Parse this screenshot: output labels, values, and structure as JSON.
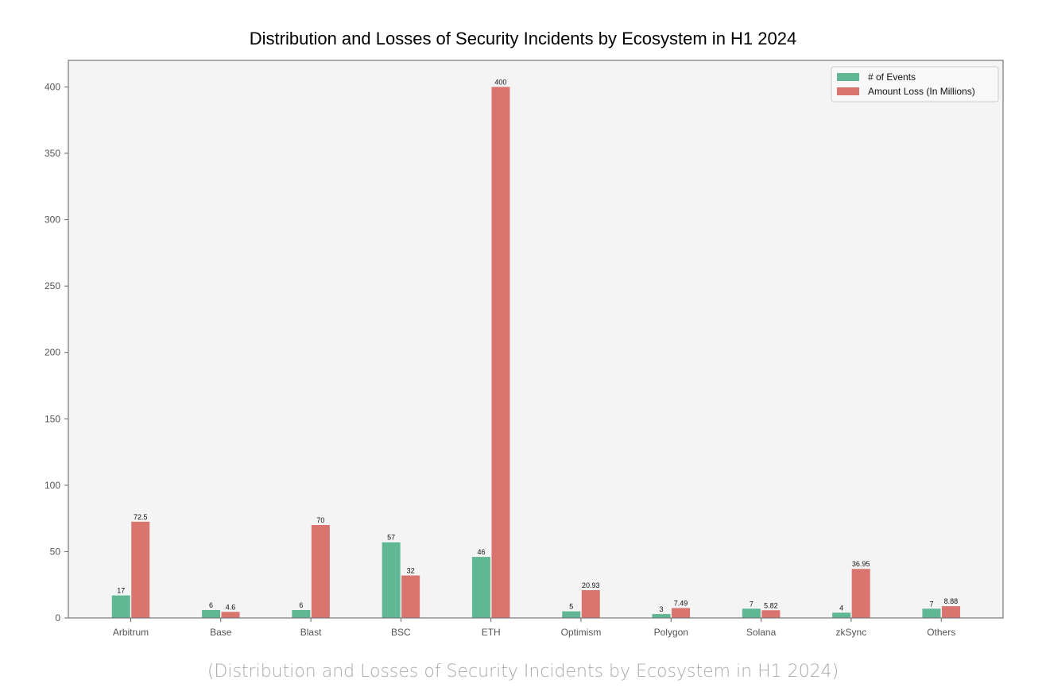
{
  "chart_data": {
    "type": "bar",
    "title": "Distribution and Losses of Security Incidents by Ecosystem in H1 2024",
    "xlabel": "",
    "ylabel": "",
    "categories": [
      "Arbitrum",
      "Base",
      "Blast",
      "BSC",
      "ETH",
      "Optimism",
      "Polygon",
      "Solana",
      "zkSync",
      "Others"
    ],
    "series": [
      {
        "name": "# of Events",
        "color": "#5fb794",
        "values": [
          17,
          6,
          6,
          57,
          46,
          5,
          3,
          7,
          4,
          7
        ],
        "labels": [
          "17",
          "6",
          "6",
          "57",
          "46",
          "5",
          "3",
          "7",
          "4",
          "7"
        ]
      },
      {
        "name": "Amount Loss (In Millions)",
        "color": "#d9746f",
        "values": [
          72.5,
          4.6,
          70,
          32,
          400,
          20.93,
          7.49,
          5.82,
          36.95,
          8.88
        ],
        "labels": [
          "72.5",
          "4.6",
          "70",
          "32",
          "400",
          "20.93",
          "7.49",
          "5.82",
          "36.95",
          "8.88"
        ]
      }
    ],
    "yticks": [
      0,
      50,
      100,
      150,
      200,
      250,
      300,
      350,
      400
    ],
    "ylim": [
      0,
      420
    ],
    "grid": false,
    "legend_position": "top-right",
    "plot_background": "#f4f4f4"
  },
  "caption": "(Distribution and Losses of Security Incidents by Ecosystem in H1 2024)"
}
